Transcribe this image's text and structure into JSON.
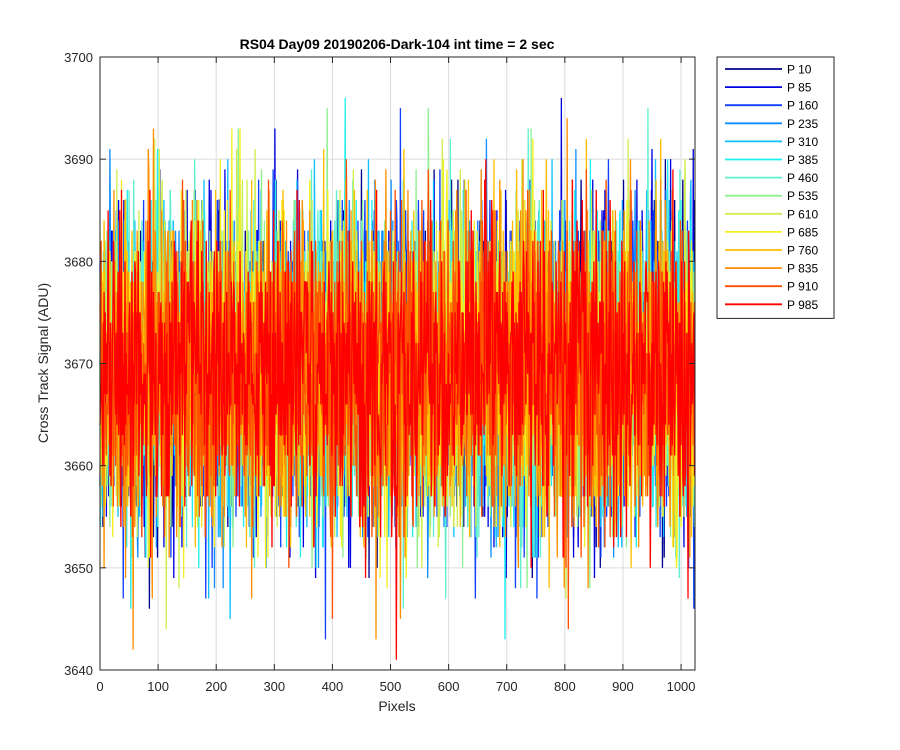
{
  "chart_data": {
    "type": "line",
    "title": "RS04 Day09 20190206-Dark-104 int time = 2 sec",
    "xlabel": "Pixels",
    "ylabel": "Cross Track Signal (ADU)",
    "xlim": [
      0,
      1024
    ],
    "ylim": [
      3640,
      3700
    ],
    "xticks": [
      0,
      100,
      200,
      300,
      400,
      500,
      600,
      700,
      800,
      900,
      1000
    ],
    "yticks": [
      3640,
      3650,
      3660,
      3670,
      3680,
      3690,
      3700
    ],
    "grid": true,
    "legend_position": "outside-top-right",
    "noise": {
      "mean": 3669.5,
      "std": 7.5,
      "min": 3641,
      "max": 3696,
      "n_points": 1024
    },
    "series": [
      {
        "name": "P 10",
        "color": "#00008f"
      },
      {
        "name": "P 85",
        "color": "#0000df"
      },
      {
        "name": "P 160",
        "color": "#0f3fff"
      },
      {
        "name": "P 235",
        "color": "#0f8fff"
      },
      {
        "name": "P 310",
        "color": "#0fbfff"
      },
      {
        "name": "P 385",
        "color": "#1fefef"
      },
      {
        "name": "P 460",
        "color": "#5fefcf"
      },
      {
        "name": "P 535",
        "color": "#8fef8f"
      },
      {
        "name": "P 610",
        "color": "#cfef4f"
      },
      {
        "name": "P 685",
        "color": "#f5ef1f"
      },
      {
        "name": "P 760",
        "color": "#ffbf00"
      },
      {
        "name": "P 835",
        "color": "#ff8f00"
      },
      {
        "name": "P 910",
        "color": "#ff4f00"
      },
      {
        "name": "P 985",
        "color": "#ff0000"
      }
    ]
  }
}
